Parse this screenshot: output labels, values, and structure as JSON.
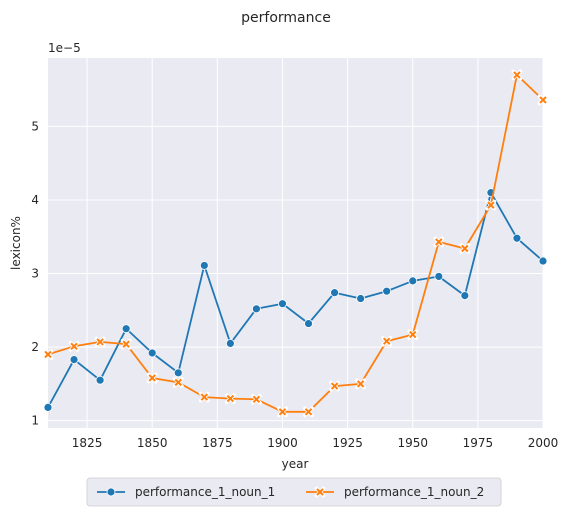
{
  "chart_data": {
    "type": "line",
    "title": "performance",
    "xlabel": "year",
    "ylabel": "lexicon%",
    "y_offset_label": "1e−5",
    "xlim": [
      1810,
      2000
    ],
    "ylim": [
      0.9,
      5.93
    ],
    "x_ticks": [
      1825,
      1850,
      1875,
      1900,
      1925,
      1950,
      1975,
      2000
    ],
    "y_ticks": [
      1,
      2,
      3,
      4,
      5
    ],
    "x": [
      1810,
      1820,
      1830,
      1840,
      1850,
      1860,
      1870,
      1880,
      1890,
      1900,
      1910,
      1920,
      1930,
      1940,
      1950,
      1960,
      1970,
      1980,
      1990,
      2000
    ],
    "series": [
      {
        "name": "performance_1_noun_1",
        "color": "#1f77b4",
        "marker": "circle",
        "values": [
          1.18,
          1.83,
          1.55,
          2.25,
          1.92,
          1.65,
          3.11,
          2.05,
          2.52,
          2.59,
          2.32,
          2.74,
          2.66,
          2.76,
          2.9,
          2.96,
          2.7,
          4.1,
          3.48,
          3.17
        ]
      },
      {
        "name": "performance_1_noun_2",
        "color": "#ff7f0e",
        "marker": "x",
        "values": [
          1.9,
          2.01,
          2.07,
          2.04,
          1.58,
          1.52,
          1.32,
          1.3,
          1.29,
          1.12,
          1.12,
          1.47,
          1.5,
          2.08,
          2.17,
          3.43,
          3.34,
          3.93,
          5.7,
          5.36
        ]
      }
    ],
    "legend_position": "bottom-center",
    "grid": true
  }
}
